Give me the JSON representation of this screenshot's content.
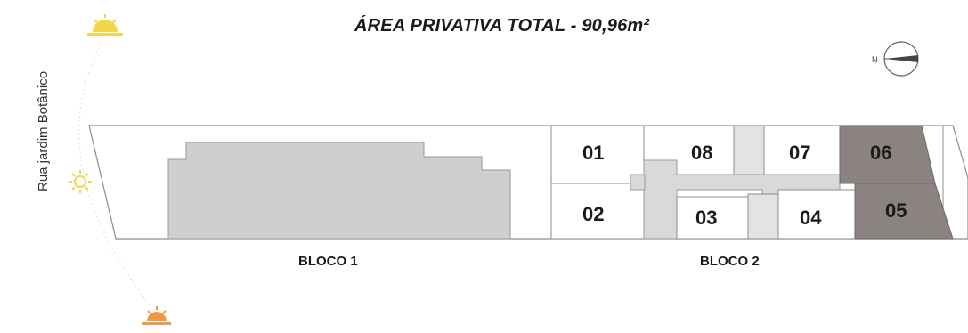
{
  "title": "ÁREA PRIVATIVA TOTAL - 90,96m²",
  "street_label": "Rua jardim Botânico",
  "north_label": "N",
  "blocks": [
    {
      "label": "BLOCO 1"
    },
    {
      "label": "BLOCO 2"
    }
  ],
  "units": [
    {
      "id": "01",
      "highlighted": false
    },
    {
      "id": "08",
      "highlighted": false
    },
    {
      "id": "07",
      "highlighted": false
    },
    {
      "id": "06",
      "highlighted": true
    },
    {
      "id": "02",
      "highlighted": false
    },
    {
      "id": "03",
      "highlighted": false
    },
    {
      "id": "04",
      "highlighted": false
    },
    {
      "id": "05",
      "highlighted": true
    }
  ],
  "sun_icons": [
    "sunrise-icon",
    "sun-icon",
    "sunset-icon"
  ],
  "colors": {
    "highlight": "#8a8381",
    "building_gray": "#cfcfcf",
    "outline": "#8c8c8c",
    "sun_yellow": "#f1d74a",
    "sunset_orange": "#ee9845"
  }
}
